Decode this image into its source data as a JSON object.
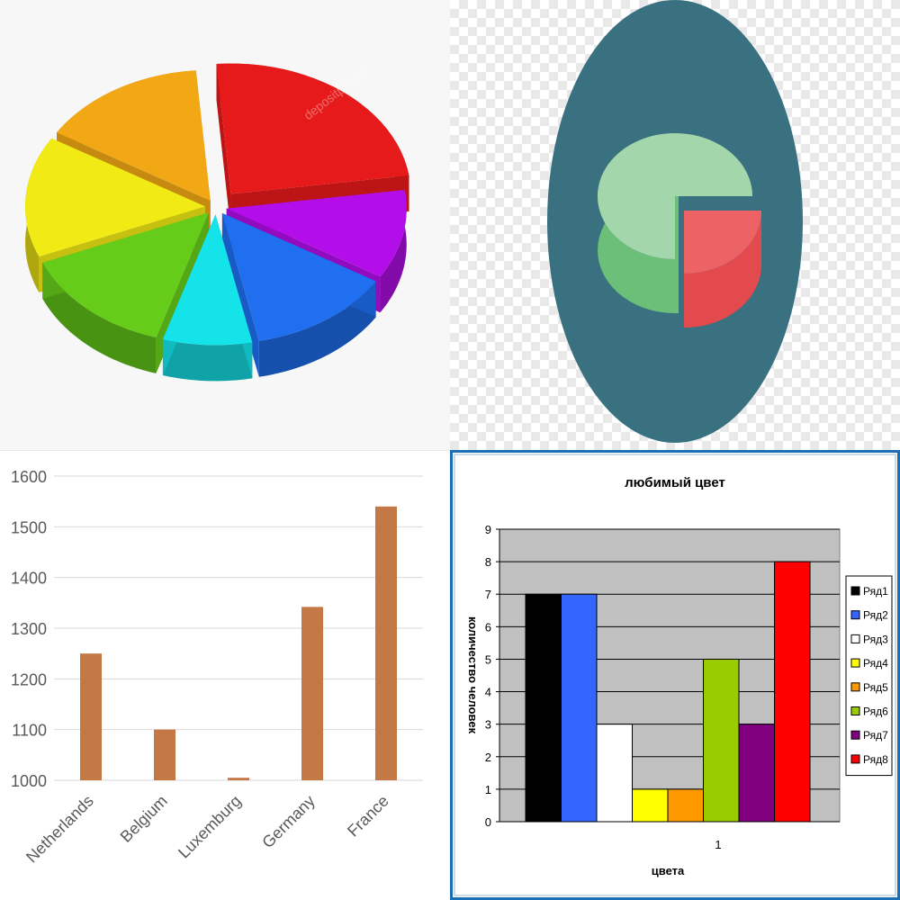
{
  "colors": {
    "pie3d": [
      "#e61a1a",
      "#b30eea",
      "#1f6ff0",
      "#15e3ea",
      "#66cc1a",
      "#f2ea14",
      "#f2a814"
    ],
    "icon_bg": "#3a7181",
    "icon_green": "#a3d6aa",
    "icon_red": "#ec6265",
    "bar_brown": "#c47845"
  },
  "chart_data": [
    {
      "type": "pie",
      "style": "3d-exploded",
      "values": [
        24,
        11,
        13,
        8,
        14,
        15,
        15
      ],
      "watermark": "depositphotos"
    },
    {
      "type": "pie",
      "style": "icon",
      "values": [
        80,
        20
      ]
    },
    {
      "type": "bar",
      "categories": [
        "Netherlands",
        "Belgium",
        "Luxemburg",
        "Germany",
        "France"
      ],
      "values": [
        1250,
        1100,
        1005,
        1342,
        1540
      ],
      "yticks": [
        "1000",
        "1100",
        "1200",
        "1300",
        "1400",
        "1500",
        "1600"
      ],
      "ylim": [
        1000,
        1600
      ],
      "grid": true
    },
    {
      "type": "bar",
      "title": "любимый цвет",
      "xlabel": "цвета",
      "ylabel": "количество человек",
      "categories": [
        "1"
      ],
      "ylim": [
        0,
        9
      ],
      "yticks": [
        "0",
        "1",
        "2",
        "3",
        "4",
        "5",
        "6",
        "7",
        "8",
        "9"
      ],
      "legend_position": "right",
      "grid": true,
      "series": [
        {
          "name": "Ряд1",
          "value": 7,
          "color": "#000000"
        },
        {
          "name": "Ряд2",
          "value": 7,
          "color": "#3366ff"
        },
        {
          "name": "Ряд3",
          "value": 3,
          "color": "#ffffff"
        },
        {
          "name": "Ряд4",
          "value": 1,
          "color": "#ffff00"
        },
        {
          "name": "Ряд5",
          "value": 1,
          "color": "#ff9900"
        },
        {
          "name": "Ряд6",
          "value": 5,
          "color": "#99cc00"
        },
        {
          "name": "Ряд7",
          "value": 3,
          "color": "#800080"
        },
        {
          "name": "Ряд8",
          "value": 8,
          "color": "#ff0000"
        }
      ]
    }
  ]
}
